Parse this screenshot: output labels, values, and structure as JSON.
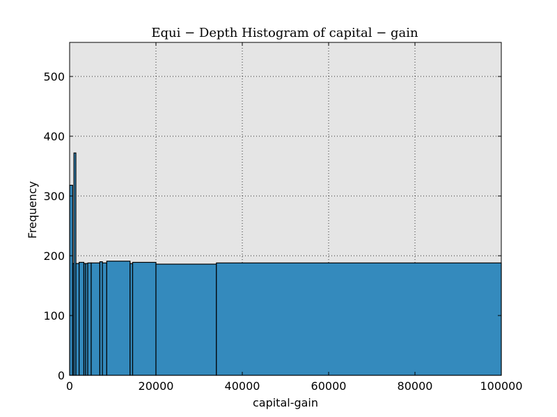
{
  "chart_data": {
    "type": "bar",
    "title": "Equi − Depth Histogram of capital − gain",
    "xlabel": "capital-gain",
    "ylabel": "Frequency",
    "xlim": [
      0,
      100000
    ],
    "ylim": [
      0,
      557
    ],
    "xticks": [
      0,
      20000,
      40000,
      60000,
      80000,
      100000
    ],
    "yticks": [
      0,
      100,
      200,
      300,
      400,
      500
    ],
    "grid": true,
    "bins": [
      {
        "x0": 0,
        "x1": 700,
        "count": 318
      },
      {
        "x0": 700,
        "x1": 1000,
        "count": 187
      },
      {
        "x0": 1000,
        "x1": 1450,
        "count": 372
      },
      {
        "x0": 1450,
        "x1": 2200,
        "count": 187
      },
      {
        "x0": 2200,
        "x1": 3300,
        "count": 189
      },
      {
        "x0": 3300,
        "x1": 3700,
        "count": 187
      },
      {
        "x0": 3700,
        "x1": 4200,
        "count": 187
      },
      {
        "x0": 4200,
        "x1": 5000,
        "count": 188
      },
      {
        "x0": 5000,
        "x1": 7000,
        "count": 188
      },
      {
        "x0": 7000,
        "x1": 7600,
        "count": 190
      },
      {
        "x0": 7600,
        "x1": 8600,
        "count": 188
      },
      {
        "x0": 8600,
        "x1": 14000,
        "count": 191
      },
      {
        "x0": 14000,
        "x1": 14600,
        "count": 187
      },
      {
        "x0": 14600,
        "x1": 20000,
        "count": 189
      },
      {
        "x0": 20000,
        "x1": 34000,
        "count": 186
      },
      {
        "x0": 34000,
        "x1": 100000,
        "count": 188
      }
    ]
  }
}
